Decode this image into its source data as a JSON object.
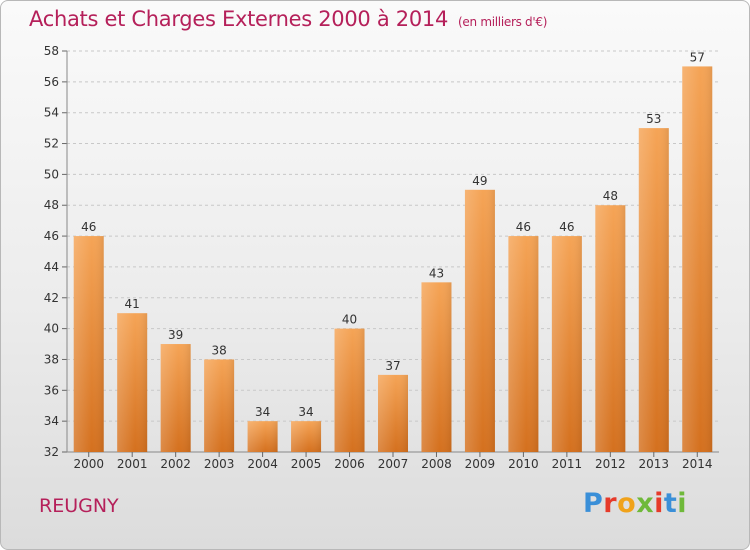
{
  "header": {
    "title": "Achats et Charges Externes 2000 à 2014",
    "subtitle": "(en milliers d'€)"
  },
  "footer": {
    "commune": "REUGNY",
    "logo_text": "Proxiti"
  },
  "colors": {
    "bar_top": "#f5a456",
    "bar_bottom": "#d4701e",
    "title": "#b5205a"
  },
  "chart_data": {
    "type": "bar",
    "title": "Achats et Charges Externes 2000 à 2014",
    "subtitle": "(en milliers d'€)",
    "xlabel": "",
    "ylabel": "",
    "categories": [
      "2000",
      "2001",
      "2002",
      "2003",
      "2004",
      "2005",
      "2006",
      "2007",
      "2008",
      "2009",
      "2010",
      "2011",
      "2012",
      "2013",
      "2014"
    ],
    "values": [
      46,
      41,
      39,
      38,
      34,
      34,
      40,
      37,
      43,
      49,
      46,
      46,
      48,
      53,
      57
    ],
    "ylim": [
      32,
      58
    ],
    "yticks": [
      32,
      34,
      36,
      38,
      40,
      42,
      44,
      46,
      48,
      50,
      52,
      54,
      56,
      58
    ],
    "grid": true,
    "legend": "none"
  }
}
